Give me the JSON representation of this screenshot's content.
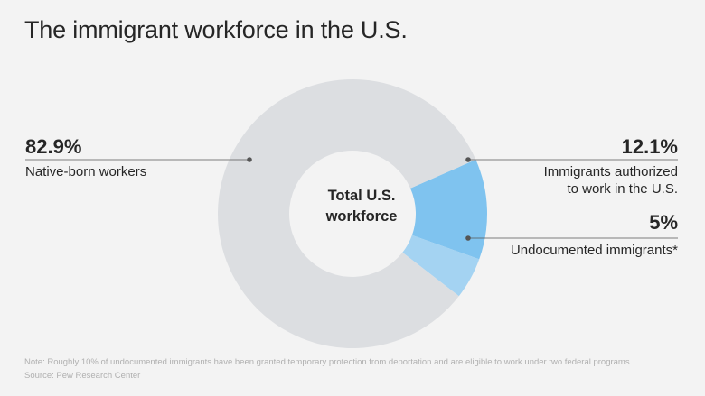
{
  "title": "The immigrant workforce in the U.S.",
  "center_label_line1": "Total U.S.",
  "center_label_line2": "workforce",
  "note": "Note: Roughly 10% of undocumented immigrants have been granted temporary protection from deportation and are eligible to work under two federal programs.",
  "source": "Source: Pew Research Center",
  "colors": {
    "native": "#dcdee1",
    "authorized": "#7fc3ef",
    "undocumented": "#a4d3f2",
    "text": "#262626",
    "leader": "#555555"
  },
  "chart_data": {
    "type": "pie",
    "title": "The immigrant workforce in the U.S.",
    "donut": true,
    "slices": [
      {
        "key": "native",
        "label": "Native-born workers",
        "value": 82.9,
        "value_label": "82.9%"
      },
      {
        "key": "authorized",
        "label_line1": "Immigrants authorized",
        "label_line2": "to work in the U.S.",
        "value": 12.1,
        "value_label": "12.1%"
      },
      {
        "key": "undocumented",
        "label": "Undocumented immigrants*",
        "value": 5,
        "value_label": "5%"
      }
    ]
  }
}
